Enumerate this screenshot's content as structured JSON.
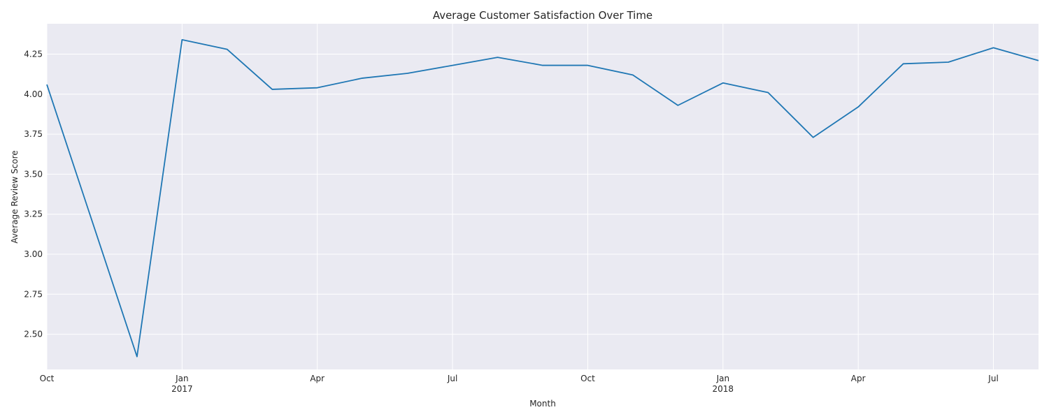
{
  "chart_data": {
    "type": "line",
    "title": "Average Customer Satisfaction Over Time",
    "xlabel": "Month",
    "ylabel": "Average Review Score",
    "grid": true,
    "legend": "none",
    "colors": {
      "background": "#eaeaf2",
      "grid": "#ffffff",
      "line": "#1f77b4",
      "text": "#262626"
    },
    "ylim": [
      2.28,
      4.44
    ],
    "yticks": [
      2.5,
      2.75,
      3.0,
      3.25,
      3.5,
      3.75,
      4.0,
      4.25
    ],
    "ytick_labels": [
      "2.50",
      "2.75",
      "3.00",
      "3.25",
      "3.50",
      "3.75",
      "4.00",
      "4.25"
    ],
    "xlim": [
      "2016-10",
      "2018-08"
    ],
    "xticks": [
      {
        "x": "2016-10",
        "label": "Oct",
        "year_label": ""
      },
      {
        "x": "2017-01",
        "label": "Jan",
        "year_label": "2017"
      },
      {
        "x": "2017-04",
        "label": "Apr",
        "year_label": ""
      },
      {
        "x": "2017-07",
        "label": "Jul",
        "year_label": ""
      },
      {
        "x": "2017-10",
        "label": "Oct",
        "year_label": ""
      },
      {
        "x": "2018-01",
        "label": "Jan",
        "year_label": "2018"
      },
      {
        "x": "2018-04",
        "label": "Apr",
        "year_label": ""
      },
      {
        "x": "2018-07",
        "label": "Jul",
        "year_label": ""
      }
    ],
    "series": [
      {
        "x": [
          "2016-10",
          "2016-12",
          "2017-01",
          "2017-02",
          "2017-03",
          "2017-04",
          "2017-05",
          "2017-06",
          "2017-07",
          "2017-08",
          "2017-09",
          "2017-10",
          "2017-11",
          "2017-12",
          "2018-01",
          "2018-02",
          "2018-03",
          "2018-04",
          "2018-05",
          "2018-06",
          "2018-07",
          "2018-08"
        ],
        "values": [
          4.06,
          2.36,
          4.34,
          4.28,
          4.03,
          4.04,
          4.1,
          4.13,
          4.18,
          4.23,
          4.18,
          4.18,
          4.12,
          3.93,
          4.07,
          4.01,
          3.73,
          3.92,
          4.19,
          4.2,
          4.29,
          4.21
        ]
      }
    ]
  }
}
